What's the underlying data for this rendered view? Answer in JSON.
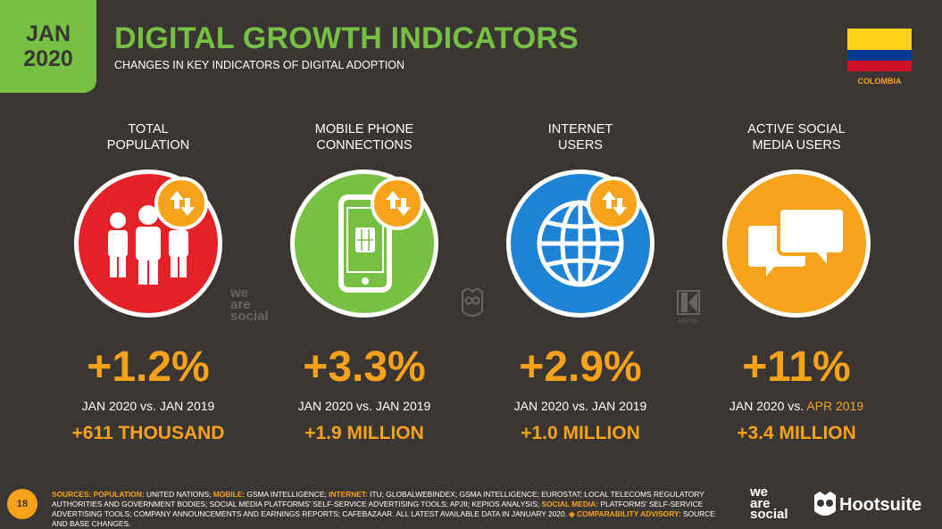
{
  "badge": {
    "month": "JAN",
    "year": "2020"
  },
  "header": {
    "title": "DIGITAL GROWTH INDICATORS",
    "subtitle": "CHANGES IN KEY INDICATORS OF DIGITAL ADOPTION"
  },
  "country": {
    "name": "COLOMBIA",
    "flag_colors": [
      "#fcd116",
      "#003893",
      "#ce1126"
    ]
  },
  "colors": {
    "accent_green": "#76c043",
    "accent_orange": "#f7a21b",
    "background": "#3a3633"
  },
  "indicators": [
    {
      "label_line1": "TOTAL",
      "label_line2": "POPULATION",
      "icon": "people-icon",
      "circle_color": "#e42127",
      "change": "+1.2%",
      "compare_prefix": "JAN 2020 vs. ",
      "compare_suffix": "JAN 2019",
      "absolute": "+611 THOUSAND"
    },
    {
      "label_line1": "MOBILE PHONE",
      "label_line2": "CONNECTIONS",
      "icon": "mobile-phone-icon",
      "circle_color": "#76c043",
      "change": "+3.3%",
      "compare_prefix": "JAN 2020 vs. ",
      "compare_suffix": "JAN 2019",
      "absolute": "+1.9 MILLION"
    },
    {
      "label_line1": "INTERNET",
      "label_line2": "USERS",
      "icon": "globe-icon",
      "circle_color": "#1e82d6",
      "change": "+2.9%",
      "compare_prefix": "JAN 2020 vs. ",
      "compare_suffix": "JAN 2019",
      "absolute": "+1.0 MILLION"
    },
    {
      "label_line1": "ACTIVE SOCIAL",
      "label_line2": "MEDIA USERS",
      "icon": "chat-bubbles-icon",
      "circle_color": "#f7a21b",
      "change": "+11%",
      "compare_prefix": "JAN 2020 vs. ",
      "compare_suffix": "APR 2019",
      "absolute": "+3.4 MILLION"
    }
  ],
  "watermarks": {
    "wearesocial_1": "we",
    "wearesocial_2": "are",
    "wearesocial_3": "social",
    "kepios": "KEPIOS"
  },
  "footer": {
    "page": "18",
    "sources_label": "SOURCES:",
    "pop_label": "POPULATION:",
    "pop_text": "UNITED NATIONS;",
    "mobile_label": "MOBILE:",
    "mobile_text": "GSMA INTELLIGENCE;",
    "internet_label": "INTERNET:",
    "internet_text": "ITU; GLOBALWEBINDEX; GSMA INTELLIGENCE; EUROSTAT; LOCAL TELECOMS REGULATORY AUTHORITIES AND GOVERNMENT BODIES; SOCIAL MEDIA PLATFORMS' SELF-SERVICE ADVERTISING TOOLS; APJII; KEPIOS ANALYSIS;",
    "social_label": "SOCIAL MEDIA:",
    "social_text": "PLATFORMS' SELF-SERVICE ADVERTISING TOOLS; COMPANY ANNOUNCEMENTS AND EARNINGS REPORTS; CAFEBAZAAR. ALL LATEST AVAILABLE DATA IN JANUARY 2020.",
    "advisory_label": "◈ COMPARABILITY ADVISORY:",
    "advisory_text": "SOURCE AND BASE CHANGES.",
    "brand1_l1": "we",
    "brand1_l2": "are",
    "brand1_l3": "social",
    "brand2": "Hootsuite"
  }
}
